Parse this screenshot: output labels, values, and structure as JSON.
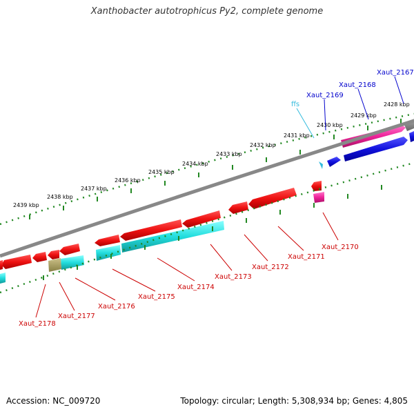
{
  "title": "Xanthobacter autotrophicus Py2, complete genome",
  "footer": {
    "accession": "Accession: NC_009720",
    "summary": "Topology: circular; Length: 5,308,934 bp; Genes: 4,805"
  },
  "ticks": [
    "2428 kbp",
    "2429 kbp",
    "2430 kbp",
    "2431 kbp",
    "2432 kbp",
    "2433 kbp",
    "2434 kbp",
    "2435 kbp",
    "2436 kbp",
    "2437 kbp",
    "2438 kbp",
    "2439 kbp"
  ],
  "genes": [
    {
      "id": "xaut-2167",
      "label": "Xaut_2167",
      "color": "#0000cc"
    },
    {
      "id": "xaut-2168",
      "label": "Xaut_2168",
      "color": "#0000cc"
    },
    {
      "id": "xaut-2169",
      "label": "Xaut_2169",
      "color": "#0000cc"
    },
    {
      "id": "ffs",
      "label": "ffs",
      "color": "#33bbdd"
    },
    {
      "id": "xaut-2170",
      "label": "Xaut_2170",
      "color": "#cc0000"
    },
    {
      "id": "xaut-2171",
      "label": "Xaut_2171",
      "color": "#cc0000"
    },
    {
      "id": "xaut-2172",
      "label": "Xaut_2172",
      "color": "#cc0000"
    },
    {
      "id": "xaut-2173",
      "label": "Xaut_2173",
      "color": "#cc0000"
    },
    {
      "id": "xaut-2174",
      "label": "Xaut_2174",
      "color": "#cc0000"
    },
    {
      "id": "xaut-2175",
      "label": "Xaut_2175",
      "color": "#cc0000"
    },
    {
      "id": "xaut-2176",
      "label": "Xaut_2176",
      "color": "#cc0000"
    },
    {
      "id": "xaut-2177",
      "label": "Xaut_2177",
      "color": "#cc0000"
    },
    {
      "id": "xaut-2178",
      "label": "Xaut_2178",
      "color": "#cc0000"
    }
  ],
  "colors": {
    "cds_red": "#ee1111",
    "cds_cyan": "#22dddd",
    "cds_blue": "#1111dd",
    "cds_pink": "#ee2299",
    "cds_olive": "#aaa066",
    "backbone": "#888888",
    "tick": "#228822"
  }
}
